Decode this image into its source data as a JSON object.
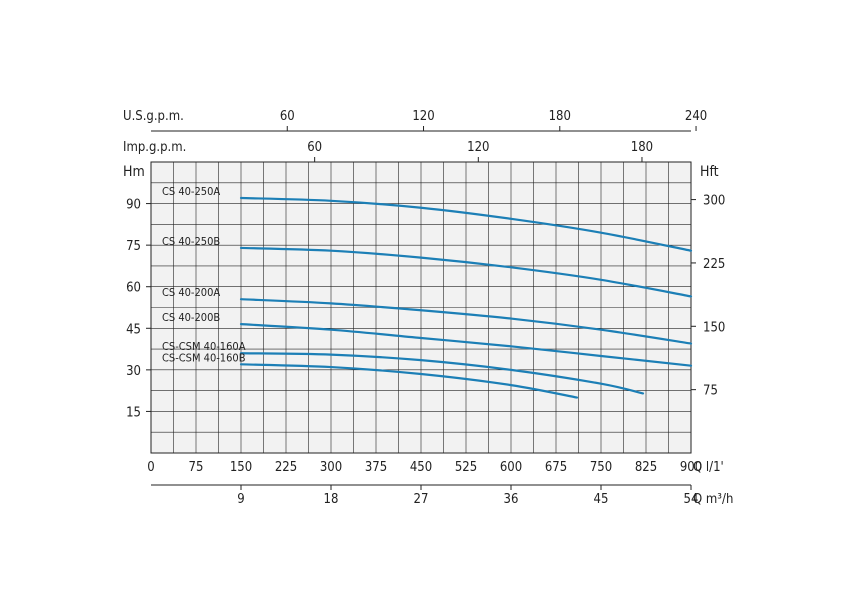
{
  "colors": {
    "curve": "#1c7fb6",
    "grid": "#222222",
    "plot_bg": "#f2f2f2",
    "text": "#222222"
  },
  "chart_data": {
    "type": "line",
    "title": "",
    "axes": {
      "left": {
        "label": "Hm",
        "ylim": [
          0,
          105
        ],
        "ticks": [
          15,
          30,
          45,
          60,
          75,
          90
        ]
      },
      "right": {
        "label": "Hft",
        "ticks": [
          75,
          150,
          225,
          300
        ]
      },
      "bottom_primary": {
        "label": "Q l/1'",
        "xlim": [
          0,
          900
        ],
        "ticks": [
          0,
          75,
          150,
          225,
          300,
          375,
          450,
          525,
          600,
          675,
          750,
          825,
          900
        ]
      },
      "bottom_secondary": {
        "label": "Q m³/h",
        "ticks": [
          9,
          18,
          27,
          36,
          45,
          54
        ]
      },
      "top_usgpm": {
        "label": "U.S.g.p.m.",
        "ticks": [
          60,
          120,
          180,
          240
        ]
      },
      "top_impgpm": {
        "label": "Imp.g.p.m.",
        "ticks": [
          60,
          120,
          180
        ]
      },
      "grid": true
    },
    "series": [
      {
        "name": "CS 40-250A",
        "x": [
          150,
          300,
          450,
          600,
          750,
          900
        ],
        "y": [
          92,
          91,
          88.5,
          84.5,
          79.5,
          73
        ]
      },
      {
        "name": "CS 40-250B",
        "x": [
          150,
          300,
          450,
          600,
          750,
          900
        ],
        "y": [
          74,
          73,
          70.5,
          67,
          62.5,
          56.5
        ]
      },
      {
        "name": "CS 40-200A",
        "x": [
          150,
          300,
          450,
          600,
          750,
          900
        ],
        "y": [
          55.5,
          54,
          51.5,
          48.5,
          44.5,
          39.5
        ]
      },
      {
        "name": "CS 40-200B",
        "x": [
          150,
          300,
          450,
          600,
          750,
          900
        ],
        "y": [
          46.5,
          44.5,
          41.5,
          38.5,
          35,
          31.5
        ]
      },
      {
        "name": "CS-CSM 40-160A",
        "x": [
          150,
          300,
          450,
          600,
          750,
          820
        ],
        "y": [
          36,
          35.5,
          33.5,
          30,
          25,
          21.5
        ]
      },
      {
        "name": "CS-CSM 40-160B",
        "x": [
          150,
          300,
          450,
          600,
          710
        ],
        "y": [
          32,
          31,
          28.5,
          24.5,
          20
        ]
      }
    ]
  }
}
